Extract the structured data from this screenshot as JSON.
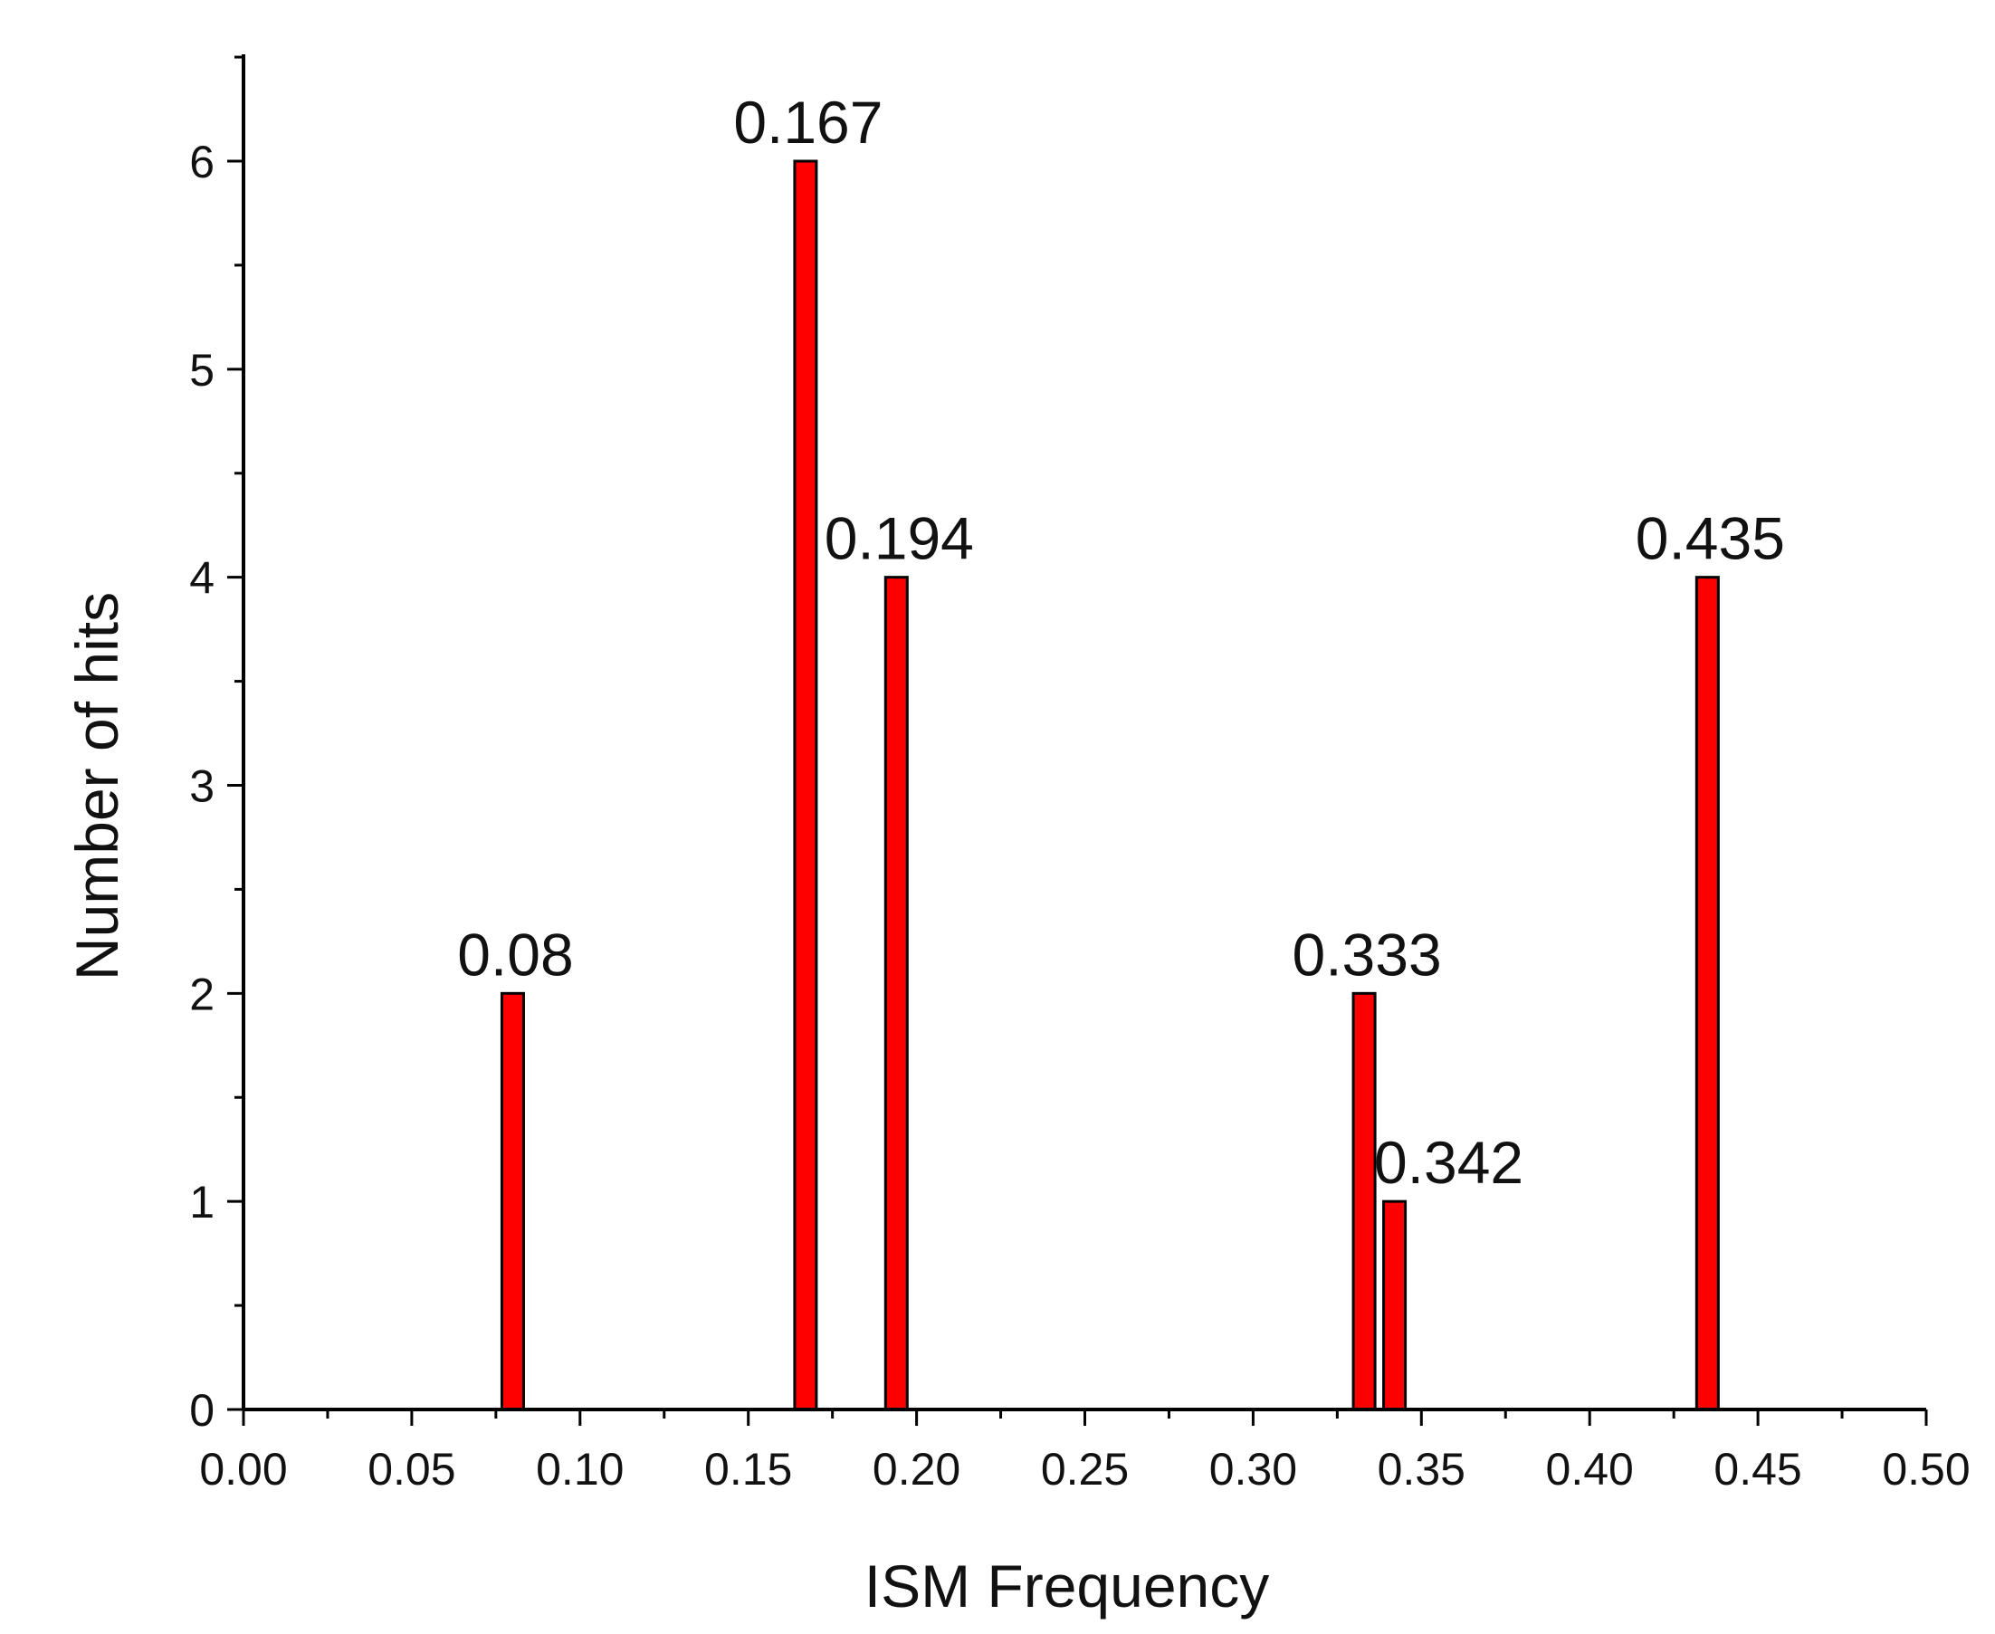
{
  "chart_data": {
    "type": "bar",
    "xlabel": "ISM Frequency",
    "ylabel": "Number of hits",
    "xlim": [
      0.0,
      0.5
    ],
    "ylim": [
      0,
      6.5
    ],
    "x_ticks": [
      "0.00",
      "0.05",
      "0.10",
      "0.15",
      "0.20",
      "0.25",
      "0.30",
      "0.35",
      "0.40",
      "0.45",
      "0.50"
    ],
    "y_ticks": [
      "0",
      "1",
      "2",
      "3",
      "4",
      "5",
      "6"
    ],
    "grid": false,
    "legend": "none",
    "bar_color": "#ff0000",
    "bars": [
      {
        "x": 0.08,
        "value": 2,
        "label": "0.08"
      },
      {
        "x": 0.167,
        "value": 6,
        "label": "0.167"
      },
      {
        "x": 0.194,
        "value": 4,
        "label": "0.194"
      },
      {
        "x": 0.333,
        "value": 2,
        "label": "0.333"
      },
      {
        "x": 0.342,
        "value": 1,
        "label": "0.342"
      },
      {
        "x": 0.435,
        "value": 4,
        "label": "0.435"
      }
    ]
  }
}
